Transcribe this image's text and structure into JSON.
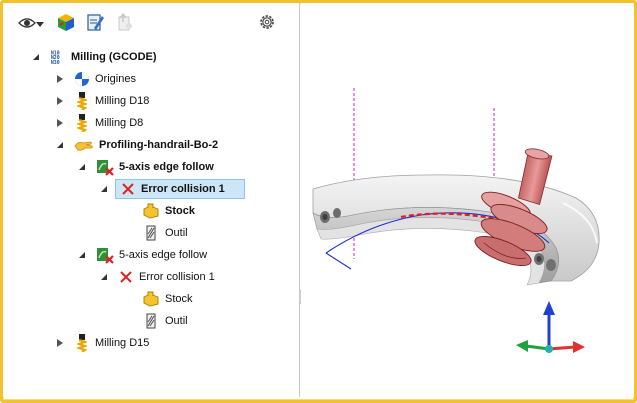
{
  "toolbar": {
    "icons": [
      "eye-icon",
      "chevron-down-icon",
      "cam-cube-icon",
      "document-edit-icon",
      "export-icon",
      "gear-icon"
    ]
  },
  "tree": {
    "root": {
      "label": "Milling (GCODE)",
      "icon": "gcode-icon"
    },
    "items": [
      {
        "label": "Origines",
        "icon": "origin-icon"
      },
      {
        "label": "Milling D18",
        "icon": "milling-tool-icon"
      },
      {
        "label": "Milling D8",
        "icon": "milling-tool-icon"
      },
      {
        "label": "Profiling-handrail-Bo-2",
        "icon": "hand-icon"
      },
      {
        "label": "5-axis edge follow",
        "icon": "toolpath-error-icon"
      },
      {
        "label": "Error collision 1",
        "icon": "red-x-icon"
      },
      {
        "label": "Stock",
        "icon": "stock-icon"
      },
      {
        "label": "Outil",
        "icon": "tool-icon"
      },
      {
        "label": "5-axis edge follow",
        "icon": "toolpath-error-icon"
      },
      {
        "label": "Error collision 1",
        "icon": "red-x-icon"
      },
      {
        "label": "Stock",
        "icon": "stock-icon"
      },
      {
        "label": "Outil",
        "icon": "tool-icon"
      },
      {
        "label": "Milling D15",
        "icon": "milling-tool-icon"
      }
    ]
  },
  "colors": {
    "frame": "#f2c12e",
    "selection": "#cde6f7",
    "error_red": "#e02020",
    "axis_x": "#e03030",
    "axis_y": "#20a040",
    "axis_z": "#2040d0"
  }
}
